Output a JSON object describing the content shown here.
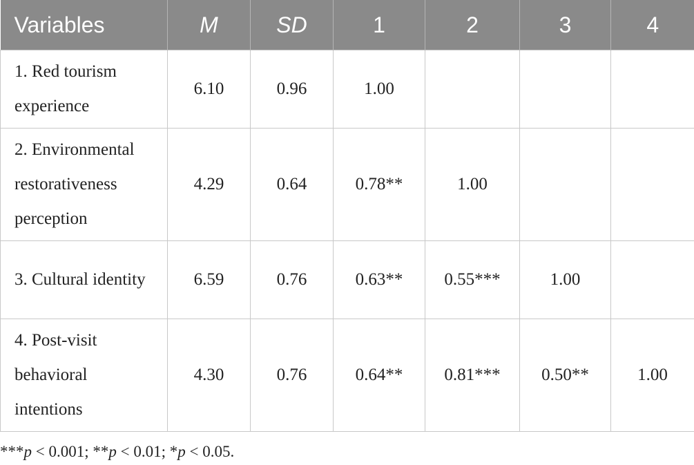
{
  "table": {
    "header": [
      "Variables",
      "M",
      "SD",
      "1",
      "2",
      "3",
      "4"
    ],
    "rows": [
      [
        "1. Red tourism experience",
        "6.10",
        "0.96",
        "1.00"
      ],
      [
        "2. Environmental restorativeness perception",
        "4.29",
        "0.64",
        "0.78**",
        "1.00"
      ],
      [
        "3. Cultural identity",
        "6.59",
        "0.76",
        "0.63**",
        "0.55***",
        "1.00"
      ],
      [
        "4. Post-visit behavioral intentions",
        "4.30",
        "0.76",
        "0.64**",
        "0.81***",
        "0.50**",
        "1.00"
      ]
    ]
  },
  "footnote": [
    "***",
    "p",
    " < 0.001; **",
    "p",
    " < 0.01; *",
    "p",
    " < 0.05."
  ]
}
